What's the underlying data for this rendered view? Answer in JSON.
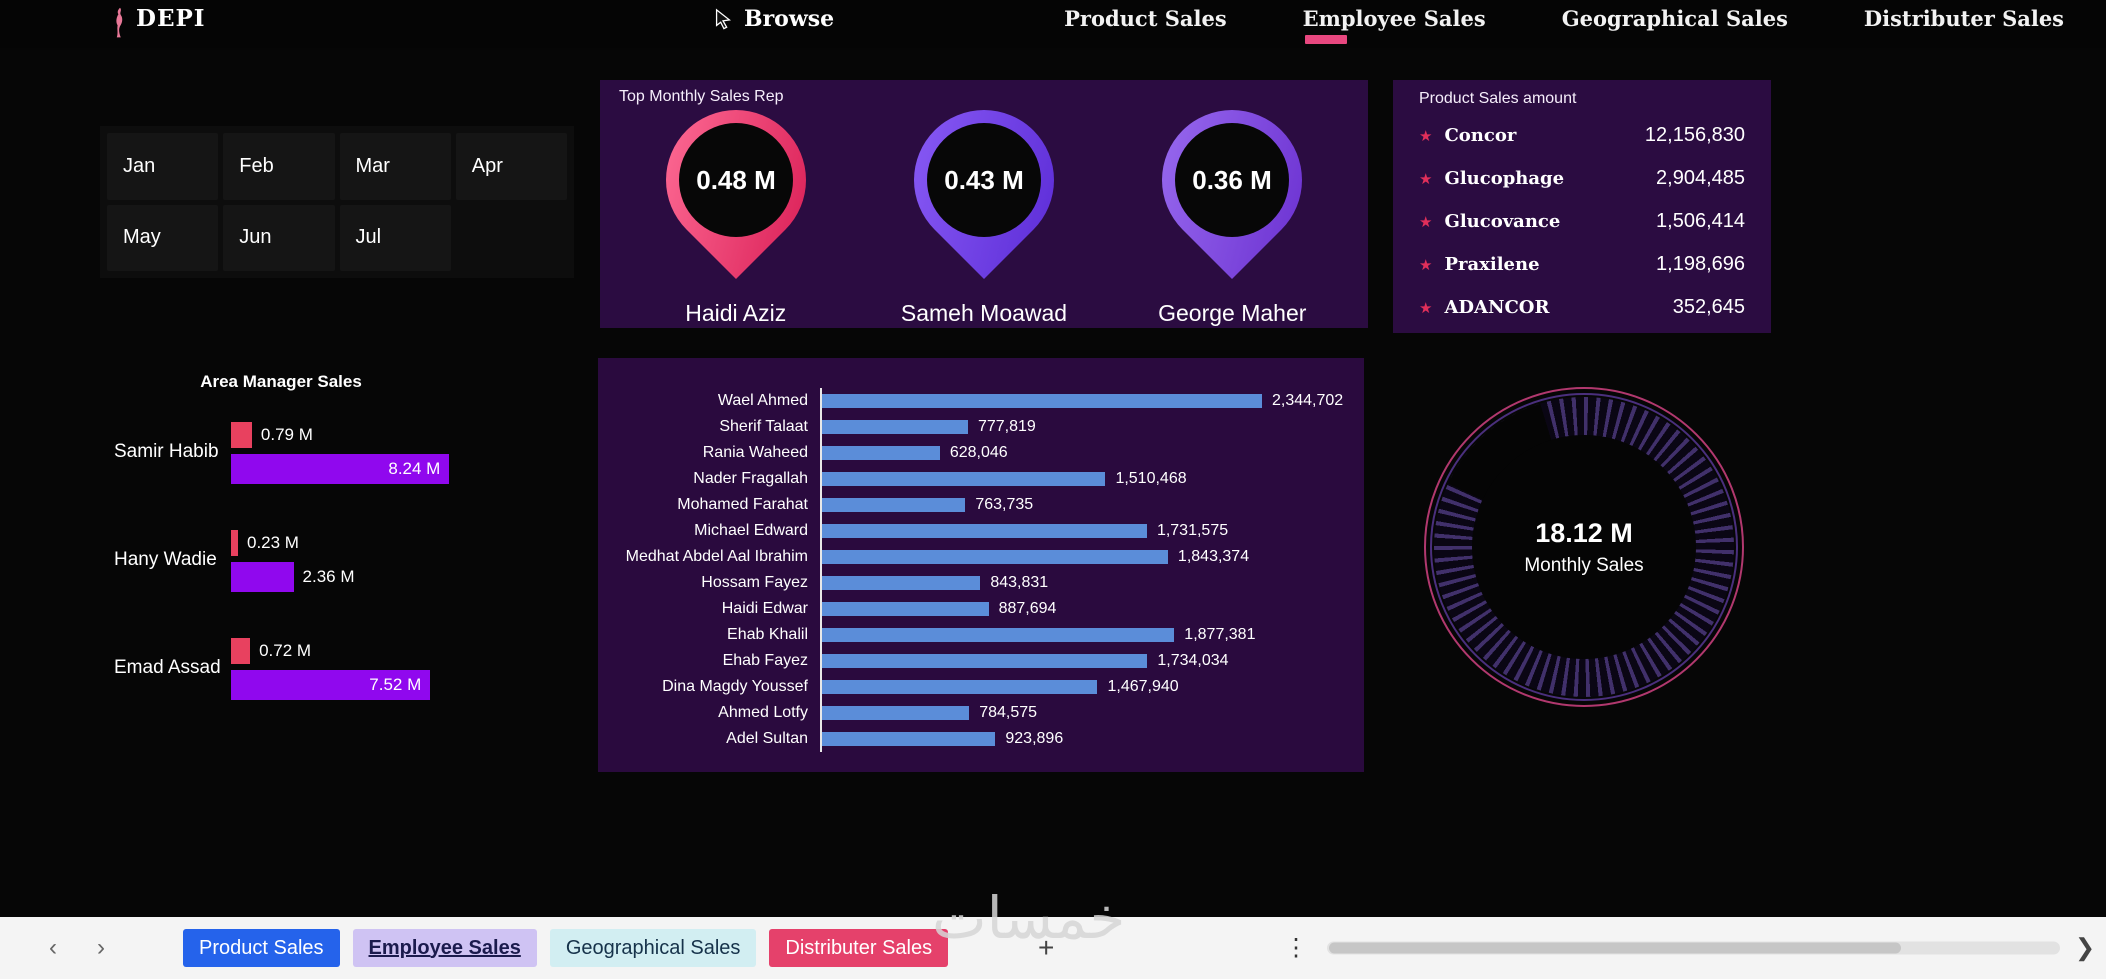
{
  "header": {
    "logo_text": "DEPI",
    "browse_label": "Browse",
    "accent_color": "#e8477f",
    "nav": [
      {
        "label": "Product Sales",
        "active": false
      },
      {
        "label": "Employee Sales",
        "active": true
      },
      {
        "label": "Geographical Sales",
        "active": false
      },
      {
        "label": "Distributer Sales",
        "active": false
      }
    ]
  },
  "filters": {
    "months": [
      "Jan",
      "Feb",
      "Mar",
      "Apr",
      "May",
      "Jun",
      "Jul"
    ]
  },
  "area_manager_chart": {
    "title": "Area Manager Sales",
    "unit": "M",
    "colors": {
      "secondary": "#e8415f",
      "primary": "#9008ee"
    },
    "managers": [
      {
        "name": "Samir Habib",
        "secondary": {
          "value": 0.79,
          "label": "0.79 M"
        },
        "primary": {
          "value": 8.24,
          "label": "8.24 M",
          "label_inside": true
        }
      },
      {
        "name": "Hany Wadie",
        "secondary": {
          "value": 0.23,
          "label": "0.23 M"
        },
        "primary": {
          "value": 2.36,
          "label": "2.36 M",
          "label_inside": false
        }
      },
      {
        "name": "Emad Assad",
        "secondary": {
          "value": 0.72,
          "label": "0.72 M"
        },
        "primary": {
          "value": 7.52,
          "label": "7.52 M",
          "label_inside": true
        }
      }
    ]
  },
  "top_reps": {
    "title": "Top Monthly Sales Rep",
    "reps": [
      {
        "value": "0.48 M",
        "name": "Haidi Aziz",
        "pin_colors": [
          "#ff6e97",
          "#d91d55"
        ]
      },
      {
        "value": "0.43 M",
        "name": "Sameh Moawad",
        "pin_colors": [
          "#8a5cf6",
          "#5b2bd6"
        ]
      },
      {
        "value": "0.36 M",
        "name": "George Maher",
        "pin_colors": [
          "#9a6cf0",
          "#6a2fd0"
        ]
      }
    ]
  },
  "product_sales": {
    "title": "Product Sales amount",
    "star_color": "#e02f5a",
    "items": [
      {
        "name": "Concor",
        "value": "12,156,830"
      },
      {
        "name": "Glucophage",
        "value": "2,904,485"
      },
      {
        "name": "Glucovance",
        "value": "1,506,414"
      },
      {
        "name": "Praxilene",
        "value": "1,198,696"
      },
      {
        "name": "ADANCOR",
        "value": "352,645"
      }
    ]
  },
  "employee_chart": {
    "type": "bar",
    "bar_color": "#5b8dd9",
    "max_value": 2344702,
    "items": [
      {
        "name": "Wael Ahmed",
        "value": 2344702,
        "label": "2,344,702"
      },
      {
        "name": "Sherif Talaat",
        "value": 777819,
        "label": "777,819"
      },
      {
        "name": "Rania Waheed",
        "value": 628046,
        "label": "628,046"
      },
      {
        "name": "Nader Fragallah",
        "value": 1510468,
        "label": "1,510,468"
      },
      {
        "name": "Mohamed Farahat",
        "value": 763735,
        "label": "763,735"
      },
      {
        "name": "Michael Edward",
        "value": 1731575,
        "label": "1,731,575"
      },
      {
        "name": "Medhat Abdel Aal Ibrahim",
        "value": 1843374,
        "label": "1,843,374"
      },
      {
        "name": "Hossam Fayez",
        "value": 843831,
        "label": "843,831"
      },
      {
        "name": "Haidi Edwar",
        "value": 887694,
        "label": "887,694"
      },
      {
        "name": "Ehab Khalil",
        "value": 1877381,
        "label": "1,877,381"
      },
      {
        "name": "Ehab Fayez",
        "value": 1734034,
        "label": "1,734,034"
      },
      {
        "name": "Dina Magdy Youssef",
        "value": 1467940,
        "label": "1,467,940"
      },
      {
        "name": "Ahmed Lotfy",
        "value": 784575,
        "label": "784,575"
      },
      {
        "name": "Adel Sultan",
        "value": 923896,
        "label": "923,896"
      }
    ]
  },
  "gauge": {
    "value": "18.12 M",
    "label": "Monthly Sales"
  },
  "footer": {
    "back_icon": "‹",
    "forward_icon": "›",
    "end_icon": "❯",
    "add_label": "+",
    "kebab_icon": "⋮",
    "watermark": "خمسات",
    "tabs": [
      {
        "label": "Product Sales",
        "bg": "#2563eb",
        "fg": "#ffffff",
        "active": false
      },
      {
        "label": "Employee Sales",
        "bg": "#cfc3f3",
        "fg": "#1b1b4d",
        "active": true
      },
      {
        "label": "Geographical Sales",
        "bg": "#d2eef2",
        "fg": "#16324a",
        "active": false
      },
      {
        "label": "Distributer Sales",
        "bg": "#e5416b",
        "fg": "#ffffff",
        "active": false
      }
    ]
  }
}
